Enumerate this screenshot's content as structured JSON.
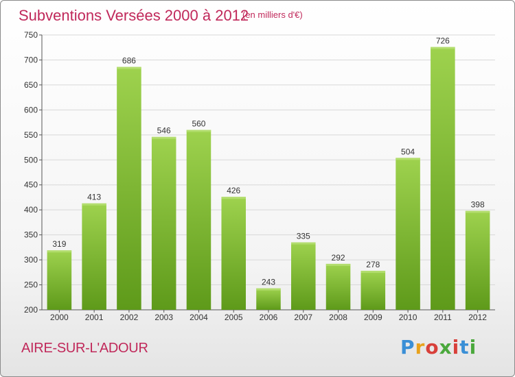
{
  "header": {
    "title": "Subventions Versées 2000 à 2012",
    "subtitle": "(en milliers d'€)"
  },
  "footer": {
    "commune": "AIRE-SUR-L'ADOUR",
    "logo_text": "Proxiti"
  },
  "colors": {
    "accent": "#c0285a",
    "bar_top": "#9ed24e",
    "bar_bottom": "#5e9a1a",
    "grid": "#d8d8d8"
  },
  "chart_data": {
    "type": "bar",
    "title": "Subventions Versées 2000 à 2012",
    "subtitle": "(en milliers d'€)",
    "xlabel": "",
    "ylabel": "",
    "categories": [
      "2000",
      "2001",
      "2002",
      "2003",
      "2004",
      "2005",
      "2006",
      "2007",
      "2008",
      "2009",
      "2010",
      "2011",
      "2012"
    ],
    "values": [
      319,
      413,
      686,
      546,
      560,
      426,
      243,
      335,
      292,
      278,
      504,
      726,
      398
    ],
    "ylim": [
      200,
      750
    ],
    "yticks": [
      200,
      250,
      300,
      350,
      400,
      450,
      500,
      550,
      600,
      650,
      700,
      750
    ],
    "grid": true,
    "data_labels": true
  }
}
